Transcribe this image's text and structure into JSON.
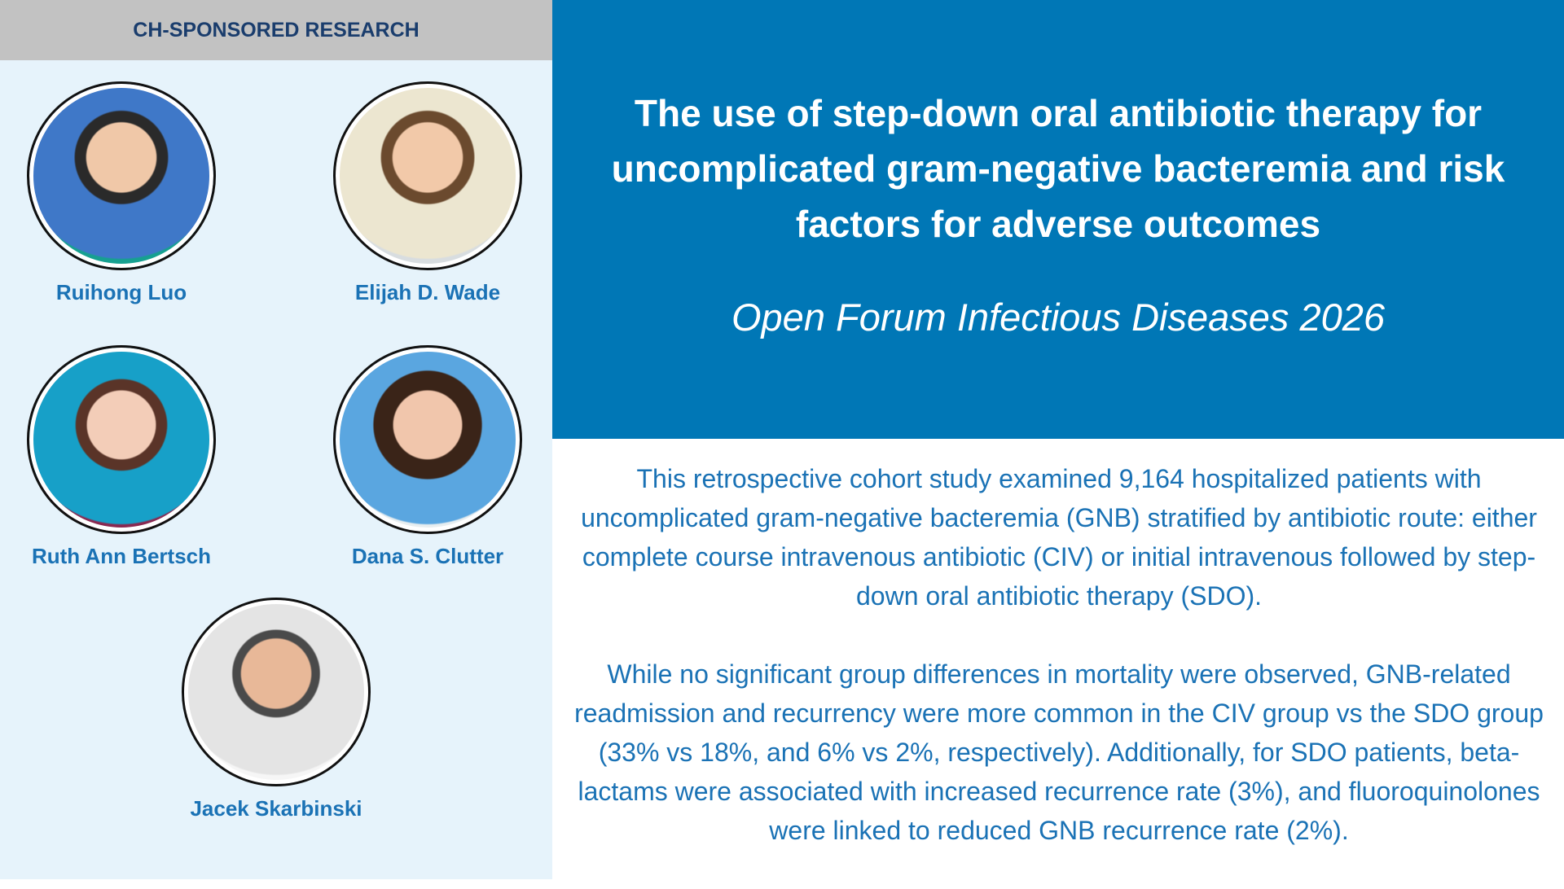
{
  "header": {
    "label": "CH-SPONSORED RESEARCH"
  },
  "people": [
    {
      "name": "Ruihong Luo"
    },
    {
      "name": "Elijah D. Wade"
    },
    {
      "name": "Ruth Ann Bertsch"
    },
    {
      "name": "Dana S. Clutter"
    },
    {
      "name": "Jacek Skarbinski"
    }
  ],
  "article": {
    "title": "The use of step-down oral antibiotic therapy for uncomplicated gram-negative bacteremia and risk factors for adverse outcomes",
    "journal": "Open Forum Infectious Diseases 2026",
    "paragraphs": [
      "This retrospective cohort study examined 9,164 hospitalized patients with uncomplicated gram-negative bacteremia (GNB) stratified by antibiotic route: either complete course intravenous antibiotic (CIV) or initial intravenous followed by step-down oral antibiotic therapy (SDO).",
      "While no significant group differences in mortality were observed, GNB-related readmission and recurrency were more common in the CIV group vs the SDO group (33% vs 18%, and 6% vs 2%, respectively). Additionally, for SDO patients, beta-lactams were associated with increased recurrence rate (3%), and fluoroquinolones were linked to reduced GNB recurrence rate (2%)."
    ]
  }
}
